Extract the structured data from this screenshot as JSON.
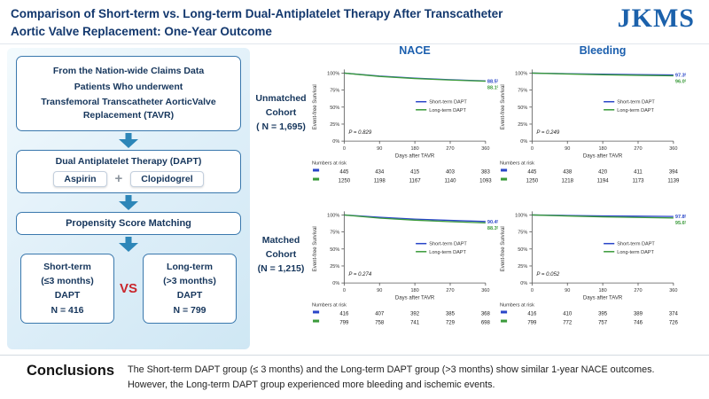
{
  "header": {
    "title_line1": "Comparison of Short-term vs. Long-term Dual-Antiplatelet Therapy After Transcatheter",
    "title_line2": "Aortic Valve Replacement: One-Year Outcome",
    "logo_text": "JKMS"
  },
  "flowchart": {
    "top_box": {
      "line1": "From the Nation-wide Claims Data",
      "line2": "Patients Who underwent",
      "line3": "Transfemoral Transcatheter AorticValve Replacement (TAVR)"
    },
    "dapt": {
      "title": "Dual Antiplatelet Therapy (DAPT)",
      "drug1": "Aspirin",
      "plus": "+",
      "drug2": "Clopidogrel"
    },
    "psm": "Propensity Score Matching",
    "short_box": [
      "Short-term",
      "(≤3 months)",
      "DAPT",
      "N = 416"
    ],
    "vs": "VS",
    "long_box": [
      "Long-term",
      "(>3 months)",
      "DAPT",
      "N = 799"
    ]
  },
  "charts_section": {
    "col_headers": [
      "NACE",
      "Bleeding"
    ],
    "row_labels": [
      [
        "Unmatched",
        "Cohort",
        "( N = 1,695)"
      ],
      [
        "Matched",
        "Cohort",
        "(N = 1,215)"
      ]
    ]
  },
  "chart_data": [
    {
      "type": "line",
      "title": "NACE — Unmatched Cohort",
      "x": [
        0,
        90,
        180,
        270,
        360
      ],
      "xlabel": "Days after TAVR",
      "ylabel": "Event-free Survival",
      "ylim": [
        0,
        100
      ],
      "yticks": [
        "100%",
        "75%",
        "50%",
        "25%",
        "0%"
      ],
      "p_value": "P = 0.829",
      "numbers_at_risk_label": "Numbers at risk",
      "series": [
        {
          "name": "Short-term DAPT",
          "color": "#2a46c8",
          "values": [
            100,
            95.6,
            92.6,
            90.3,
            88.5
          ],
          "end_label": "88.5%",
          "at_risk": [
            445,
            434,
            415,
            403,
            383
          ]
        },
        {
          "name": "Long-term DAPT",
          "color": "#3a9a3a",
          "values": [
            100,
            95.1,
            92.0,
            89.8,
            88.1
          ],
          "end_label": "88.1%",
          "at_risk": [
            1250,
            1198,
            1167,
            1140,
            1093
          ]
        }
      ]
    },
    {
      "type": "line",
      "title": "Bleeding — Unmatched Cohort",
      "x": [
        0,
        90,
        180,
        270,
        360
      ],
      "xlabel": "Days after TAVR",
      "ylabel": "Event-free Survival",
      "ylim": [
        0,
        100
      ],
      "yticks": [
        "100%",
        "75%",
        "50%",
        "25%",
        "0%"
      ],
      "p_value": "P = 0.249",
      "numbers_at_risk_label": "Numbers at risk",
      "series": [
        {
          "name": "Short-term DAPT",
          "color": "#2a46c8",
          "values": [
            100,
            99.1,
            98.4,
            97.8,
            97.3
          ],
          "end_label": "97.3%",
          "at_risk": [
            445,
            438,
            420,
            411,
            394
          ]
        },
        {
          "name": "Long-term DAPT",
          "color": "#3a9a3a",
          "values": [
            100,
            98.7,
            97.5,
            96.7,
            96.0
          ],
          "end_label": "96.0%",
          "at_risk": [
            1250,
            1218,
            1194,
            1173,
            1139
          ]
        }
      ]
    },
    {
      "type": "line",
      "title": "NACE — Matched Cohort",
      "x": [
        0,
        90,
        180,
        270,
        360
      ],
      "xlabel": "Days after TAVR",
      "ylabel": "Event-free Survival",
      "ylim": [
        0,
        100
      ],
      "yticks": [
        "100%",
        "75%",
        "50%",
        "25%",
        "0%"
      ],
      "p_value": "P = 0.274",
      "numbers_at_risk_label": "Numbers at risk",
      "series": [
        {
          "name": "Short-term DAPT",
          "color": "#2a46c8",
          "values": [
            100,
            96.6,
            93.9,
            92.0,
            90.4
          ],
          "end_label": "90.4%",
          "at_risk": [
            416,
            407,
            392,
            385,
            368
          ]
        },
        {
          "name": "Long-term DAPT",
          "color": "#3a9a3a",
          "values": [
            100,
            95.3,
            92.3,
            90.1,
            88.3
          ],
          "end_label": "88.3%",
          "at_risk": [
            799,
            758,
            741,
            729,
            698
          ]
        }
      ]
    },
    {
      "type": "line",
      "title": "Bleeding — Matched Cohort",
      "x": [
        0,
        90,
        180,
        270,
        360
      ],
      "xlabel": "Days after TAVR",
      "ylabel": "Event-free Survival",
      "ylim": [
        0,
        100
      ],
      "yticks": [
        "100%",
        "75%",
        "50%",
        "25%",
        "0%"
      ],
      "p_value": "P = 0.052",
      "numbers_at_risk_label": "Numbers at risk",
      "series": [
        {
          "name": "Short-term DAPT",
          "color": "#2a46c8",
          "values": [
            100,
            99.2,
            98.6,
            98.2,
            97.8
          ],
          "end_label": "97.8%",
          "at_risk": [
            416,
            410,
            395,
            389,
            374
          ]
        },
        {
          "name": "Long-term DAPT",
          "color": "#3a9a3a",
          "values": [
            100,
            98.5,
            97.2,
            96.3,
            95.6
          ],
          "end_label": "95.6%",
          "at_risk": [
            799,
            772,
            757,
            746,
            726
          ]
        }
      ]
    }
  ],
  "conclusions": {
    "heading": "Conclusions",
    "line1": "The Short-term DAPT group (≤ 3 months) and the Long-term DAPT group (>3 months) show similar 1-year NACE outcomes.",
    "line2": "However, the Long-term DAPT group experienced more bleeding and ischemic events."
  },
  "colors": {
    "navy_text": "#16365c",
    "chart_header_blue": "#1b5fae",
    "short_term_blue": "#2a46c8",
    "long_term_green": "#3a9a3a",
    "vs_red": "#c9252b",
    "arrow_teal": "#2d86b8",
    "logo_blue": "#1b61ab"
  }
}
